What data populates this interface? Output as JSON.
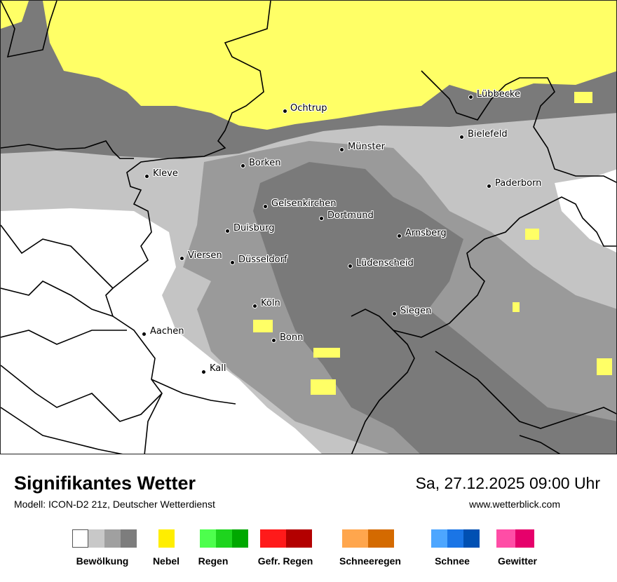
{
  "map": {
    "cities": [
      {
        "name": "Ochtrup"
      },
      {
        "name": "Lübbecke"
      },
      {
        "name": "Bielefeld"
      },
      {
        "name": "Münster"
      },
      {
        "name": "Borken"
      },
      {
        "name": "Kleve"
      },
      {
        "name": "Paderborn"
      },
      {
        "name": "Gelsenkirchen"
      },
      {
        "name": "Dortmund"
      },
      {
        "name": "Duisburg"
      },
      {
        "name": "Arnsberg"
      },
      {
        "name": "Viersen"
      },
      {
        "name": "Düsseldorf"
      },
      {
        "name": "Lüdenscheid"
      },
      {
        "name": "Köln"
      },
      {
        "name": "Siegen"
      },
      {
        "name": "Aachen"
      },
      {
        "name": "Bonn"
      },
      {
        "name": "Kall"
      }
    ],
    "colors": {
      "fog": "#ffff66",
      "cloud_1": "#c4c4c4",
      "cloud_2": "#9a9a9a",
      "cloud_3": "#7a7a7a",
      "border": "#000000"
    }
  },
  "footer": {
    "title": "Signifikantes Wetter",
    "model": "Modell: ICON-D2 21z, Deutscher Wetterdienst",
    "datetime": "Sa, 27.12.2025 09:00 Uhr",
    "website": "www.wetterblick.com"
  },
  "legend": [
    {
      "label": "Bewölkung",
      "colors": [
        "#ffffff",
        "#c8c8c8",
        "#a0a0a0",
        "#7d7d7d"
      ]
    },
    {
      "label": "Nebel",
      "colors": [
        "#ffee00"
      ]
    },
    {
      "label": "Regen",
      "colors": [
        "#4dff4d",
        "#1ed41e",
        "#00a800"
      ]
    },
    {
      "label": "Gefr. Regen",
      "colors": [
        "#ff1a1a",
        "#b30000"
      ]
    },
    {
      "label": "Schneeregen",
      "colors": [
        "#ffa64d",
        "#d46a00"
      ]
    },
    {
      "label": "Schnee",
      "colors": [
        "#4da6ff",
        "#1a75e6",
        "#0050b3"
      ]
    },
    {
      "label": "Gewitter",
      "colors": [
        "#ff4da6",
        "#e6006b"
      ]
    }
  ]
}
